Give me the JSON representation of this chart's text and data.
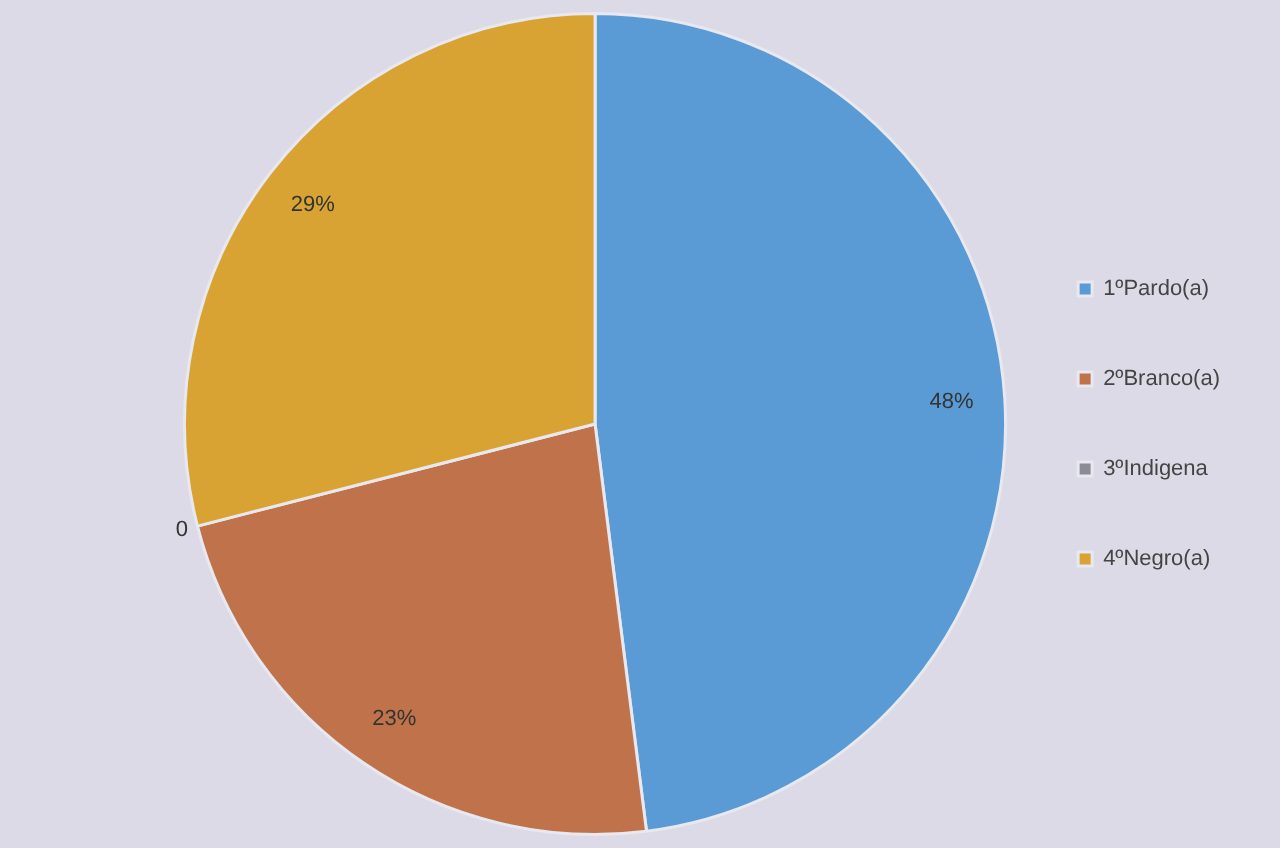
{
  "chart_data": {
    "type": "pie",
    "categories": [
      "1ºPardo(a)",
      "2ºBranco(a)",
      "3ºIndigena",
      "4ºNegro(a)"
    ],
    "values": [
      48,
      23,
      0,
      29
    ],
    "value_labels": [
      "48%",
      "23%",
      "0",
      "29%"
    ],
    "colors": [
      "#5b9bd5",
      "#c0734a",
      "#8c8c96",
      "#d9a334"
    ],
    "legend": "right"
  }
}
